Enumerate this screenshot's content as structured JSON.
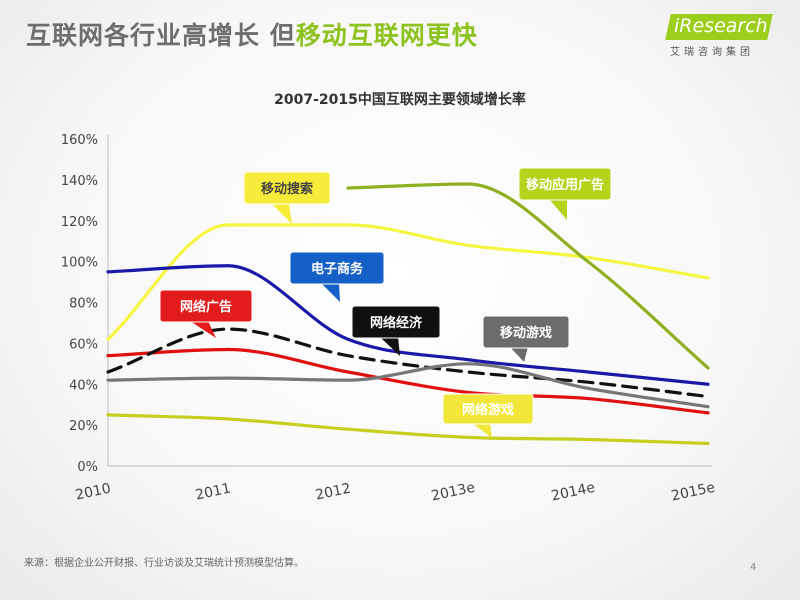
{
  "header": {
    "title_part1": "互联网各行业高增长 但",
    "title_part2": "移动互联网更快"
  },
  "logo": {
    "text": "iResearch",
    "subtitle": "艾瑞咨询集团"
  },
  "footnote": "来源：根据企业公开财报、行业访谈及艾瑞统计预测模型估算。",
  "page_number": "4",
  "chart_data": {
    "type": "line",
    "title": "2007-2015中国互联网主要领域增长率",
    "xlabel": "",
    "ylabel": "",
    "categories": [
      "2010",
      "2011",
      "2012",
      "2013e",
      "2014e",
      "2015e"
    ],
    "ylim": [
      0,
      160
    ],
    "yticks": [
      "0%",
      "20%",
      "40%",
      "60%",
      "80%",
      "100%",
      "120%",
      "140%",
      "160%"
    ],
    "grid": false,
    "series": [
      {
        "name": "移动搜索",
        "color": "#f5f542",
        "values": [
          62,
          118,
          118,
          108,
          102,
          92
        ]
      },
      {
        "name": "移动应用广告",
        "color": "#8fb021",
        "values": [
          null,
          null,
          136,
          138,
          100,
          48
        ]
      },
      {
        "name": "电子商务",
        "color": "#1b17a8",
        "values": [
          95,
          98,
          62,
          52,
          46,
          40
        ]
      },
      {
        "name": "网络广告",
        "color": "#e01010",
        "values": [
          54,
          57,
          46,
          36,
          33,
          26
        ]
      },
      {
        "name": "网络经济",
        "color": "#111111",
        "dashed": true,
        "values": [
          46,
          67,
          54,
          46,
          41,
          34
        ]
      },
      {
        "name": "移动游戏",
        "color": "#777777",
        "values": [
          42,
          43,
          42,
          50,
          38,
          29
        ]
      },
      {
        "name": "网络游戏",
        "color": "#c6cf1e",
        "values": [
          25,
          23,
          18,
          14,
          13,
          11
        ]
      }
    ],
    "callouts": [
      {
        "text": "移动搜索",
        "series": "移动搜索",
        "bg": "#f7ec3a",
        "fg": "#444444"
      },
      {
        "text": "移动应用广告",
        "series": "移动应用广告",
        "bg": "#b6d21b",
        "fg": "#ffffff"
      },
      {
        "text": "电子商务",
        "series": "电子商务",
        "bg": "#1560c6",
        "fg": "#ffffff"
      },
      {
        "text": "网络广告",
        "series": "网络广告",
        "bg": "#e21c1c",
        "fg": "#ffffff"
      },
      {
        "text": "网络经济",
        "series": "网络经济",
        "bg": "#111111",
        "fg": "#ffffff"
      },
      {
        "text": "移动游戏",
        "series": "移动游戏",
        "bg": "#6c6c6c",
        "fg": "#ffffff"
      },
      {
        "text": "网络游戏",
        "series": "网络游戏",
        "bg": "#f1e73a",
        "fg": "#ffffff"
      }
    ]
  }
}
